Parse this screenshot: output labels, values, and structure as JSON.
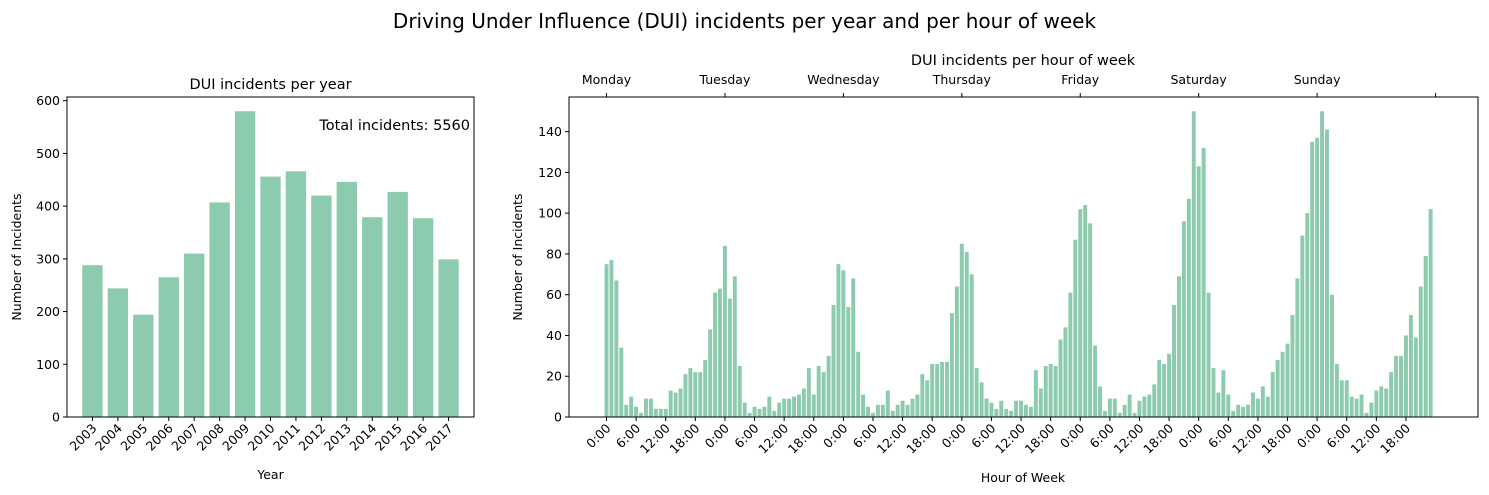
{
  "figure": {
    "suptitle": "Driving Under Influence (DUI) incidents per year and per hour of week"
  },
  "colors": {
    "bar": "#8ccbad",
    "axis": "#000000",
    "text": "#000000"
  },
  "chart_data": [
    {
      "type": "bar",
      "title": "DUI incidents per year",
      "xlabel": "Year",
      "ylabel": "Number of Incidents",
      "annotation": "Total incidents: 5560",
      "categories": [
        "2003",
        "2004",
        "2005",
        "2006",
        "2007",
        "2008",
        "2009",
        "2010",
        "2011",
        "2012",
        "2013",
        "2014",
        "2015",
        "2016",
        "2017"
      ],
      "values": [
        288,
        244,
        194,
        265,
        310,
        407,
        580,
        456,
        466,
        420,
        446,
        379,
        427,
        377,
        299
      ],
      "ylim": [
        0,
        607
      ],
      "yticks": [
        0,
        100,
        200,
        300,
        400,
        500,
        600
      ],
      "grid": false
    },
    {
      "type": "bar",
      "title": "DUI incidents per hour of week",
      "xlabel": "Hour of Week",
      "ylabel": "Number of Incidents",
      "x_range": [
        0,
        167
      ],
      "xlim": [
        -7.6,
        176.6
      ],
      "values": [
        75,
        77,
        67,
        34,
        6,
        10,
        5,
        2,
        9,
        9,
        4,
        4,
        4,
        13,
        12,
        14,
        21,
        24,
        22,
        22,
        28,
        43,
        61,
        63,
        84,
        58,
        69,
        25,
        7,
        2,
        5,
        4,
        5,
        10,
        3,
        7,
        9,
        9,
        10,
        11,
        14,
        24,
        11,
        25,
        22,
        30,
        55,
        75,
        72,
        54,
        68,
        32,
        11,
        5,
        2,
        6,
        6,
        13,
        3,
        6,
        8,
        6,
        9,
        11,
        21,
        18,
        26,
        26,
        27,
        27,
        51,
        64,
        85,
        81,
        70,
        24,
        17,
        9,
        7,
        4,
        8,
        4,
        3,
        8,
        8,
        6,
        5,
        23,
        14,
        25,
        26,
        25,
        38,
        44,
        61,
        87,
        102,
        104,
        95,
        35,
        15,
        3,
        9,
        9,
        2,
        6,
        11,
        2,
        8,
        10,
        11,
        16,
        28,
        26,
        31,
        55,
        69,
        96,
        107,
        150,
        123,
        132,
        61,
        24,
        12,
        23,
        11,
        3,
        6,
        5,
        6,
        12,
        9,
        15,
        10,
        22,
        28,
        32,
        36,
        50,
        68,
        89,
        100,
        135,
        137,
        150,
        141,
        60,
        26,
        18,
        18,
        10,
        9,
        11,
        2,
        7,
        13,
        15,
        14,
        22,
        30,
        30,
        40,
        50,
        39,
        64,
        79,
        102
      ],
      "ylim": [
        0,
        157
      ],
      "yticks": [
        0,
        20,
        40,
        60,
        80,
        100,
        120,
        140
      ],
      "bottom_tick_labels": [
        "0:00",
        "6:00",
        "12:00",
        "18:00",
        "0:00",
        "6:00",
        "12:00",
        "18:00",
        "0:00",
        "6:00",
        "12:00",
        "18:00",
        "0:00",
        "6:00",
        "12:00",
        "18:00",
        "0:00",
        "6:00",
        "12:00",
        "18:00",
        "0:00",
        "6:00",
        "12:00",
        "18:00",
        "0:00",
        "6:00",
        "12:00",
        "18:00"
      ],
      "bottom_tick_hours": [
        0,
        6,
        12,
        18,
        24,
        30,
        36,
        42,
        48,
        54,
        60,
        66,
        72,
        78,
        84,
        90,
        96,
        102,
        108,
        114,
        120,
        126,
        132,
        138,
        144,
        150,
        156,
        162
      ],
      "top_axis_labels": [
        "Monday",
        "Tuesday",
        "Wednesday",
        "Thursday",
        "Friday",
        "Saturday",
        "Sunday"
      ],
      "top_tick_hours": [
        0,
        24,
        48,
        72,
        96,
        120,
        144,
        168
      ],
      "grid": false
    }
  ]
}
